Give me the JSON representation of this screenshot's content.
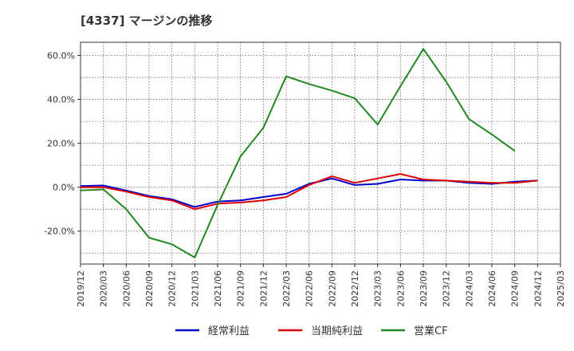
{
  "title": "[4337]  マージンの推移",
  "chart_data": {
    "type": "line",
    "title": "[4337]  マージンの推移",
    "xlabel": "",
    "ylabel": "",
    "ylim": [
      -35,
      66
    ],
    "y_ticks": [
      60,
      40,
      20,
      0,
      -20
    ],
    "y_tick_labels": [
      "60.0%",
      "40.0%",
      "20.0%",
      "0.0%",
      "-20.0%"
    ],
    "x_tick_labels": [
      "2019/12",
      "2020/03",
      "2020/06",
      "2020/09",
      "2020/12",
      "2021/03",
      "2021/06",
      "2021/09",
      "2021/12",
      "2022/03",
      "2022/06",
      "2022/09",
      "2022/12",
      "2023/03",
      "2023/06",
      "2023/09",
      "2023/12",
      "2024/03",
      "2024/06",
      "2024/09",
      "2024/12",
      "2025/03"
    ],
    "grid": true,
    "legend_position": "bottom",
    "series": [
      {
        "name": "経常利益",
        "color": "#0000cc",
        "x": [
          "2019/12",
          "2020/03",
          "2020/06",
          "2020/09",
          "2020/12",
          "2021/03",
          "2021/06",
          "2021/09",
          "2021/12",
          "2022/03",
          "2022/06",
          "2022/09",
          "2022/12",
          "2023/03",
          "2023/06",
          "2023/09",
          "2023/12",
          "2024/03",
          "2024/06",
          "2024/09",
          "2024/12"
        ],
        "values": [
          0.5,
          0.8,
          -1.5,
          -4.0,
          -5.5,
          -9.0,
          -6.5,
          -6.0,
          -4.5,
          -3.0,
          1.5,
          4.0,
          1.0,
          1.5,
          3.5,
          3.0,
          3.0,
          2.0,
          1.5,
          2.5,
          3.0
        ]
      },
      {
        "name": "当期純利益",
        "color": "#dd0000",
        "x": [
          "2019/12",
          "2020/03",
          "2020/06",
          "2020/09",
          "2020/12",
          "2021/03",
          "2021/06",
          "2021/09",
          "2021/12",
          "2022/03",
          "2022/06",
          "2022/09",
          "2022/12",
          "2023/03",
          "2023/06",
          "2023/09",
          "2023/12",
          "2024/03",
          "2024/06",
          "2024/09",
          "2024/12"
        ],
        "values": [
          0.0,
          0.0,
          -2.0,
          -4.5,
          -6.0,
          -10.0,
          -7.5,
          -7.0,
          -6.0,
          -4.5,
          1.0,
          5.0,
          2.0,
          4.0,
          6.0,
          3.5,
          3.0,
          2.5,
          2.0,
          2.0,
          3.0
        ]
      },
      {
        "name": "営業CF",
        "color": "#228822",
        "x": [
          "2019/12",
          "2020/03",
          "2020/06",
          "2020/09",
          "2020/12",
          "2021/03",
          "2021/06",
          "2021/09",
          "2021/12",
          "2022/03",
          "2022/06",
          "2022/09",
          "2022/12",
          "2023/03",
          "2023/06",
          "2023/09",
          "2023/12",
          "2024/03",
          "2024/06",
          "2024/09"
        ],
        "values": [
          -1.5,
          -1.0,
          -10.0,
          -23.0,
          -26.0,
          -32.0,
          -8.0,
          14.0,
          27.0,
          50.5,
          47.0,
          44.0,
          40.5,
          28.5,
          46.0,
          63.0,
          48.0,
          31.0,
          24.0,
          16.5
        ]
      }
    ]
  }
}
